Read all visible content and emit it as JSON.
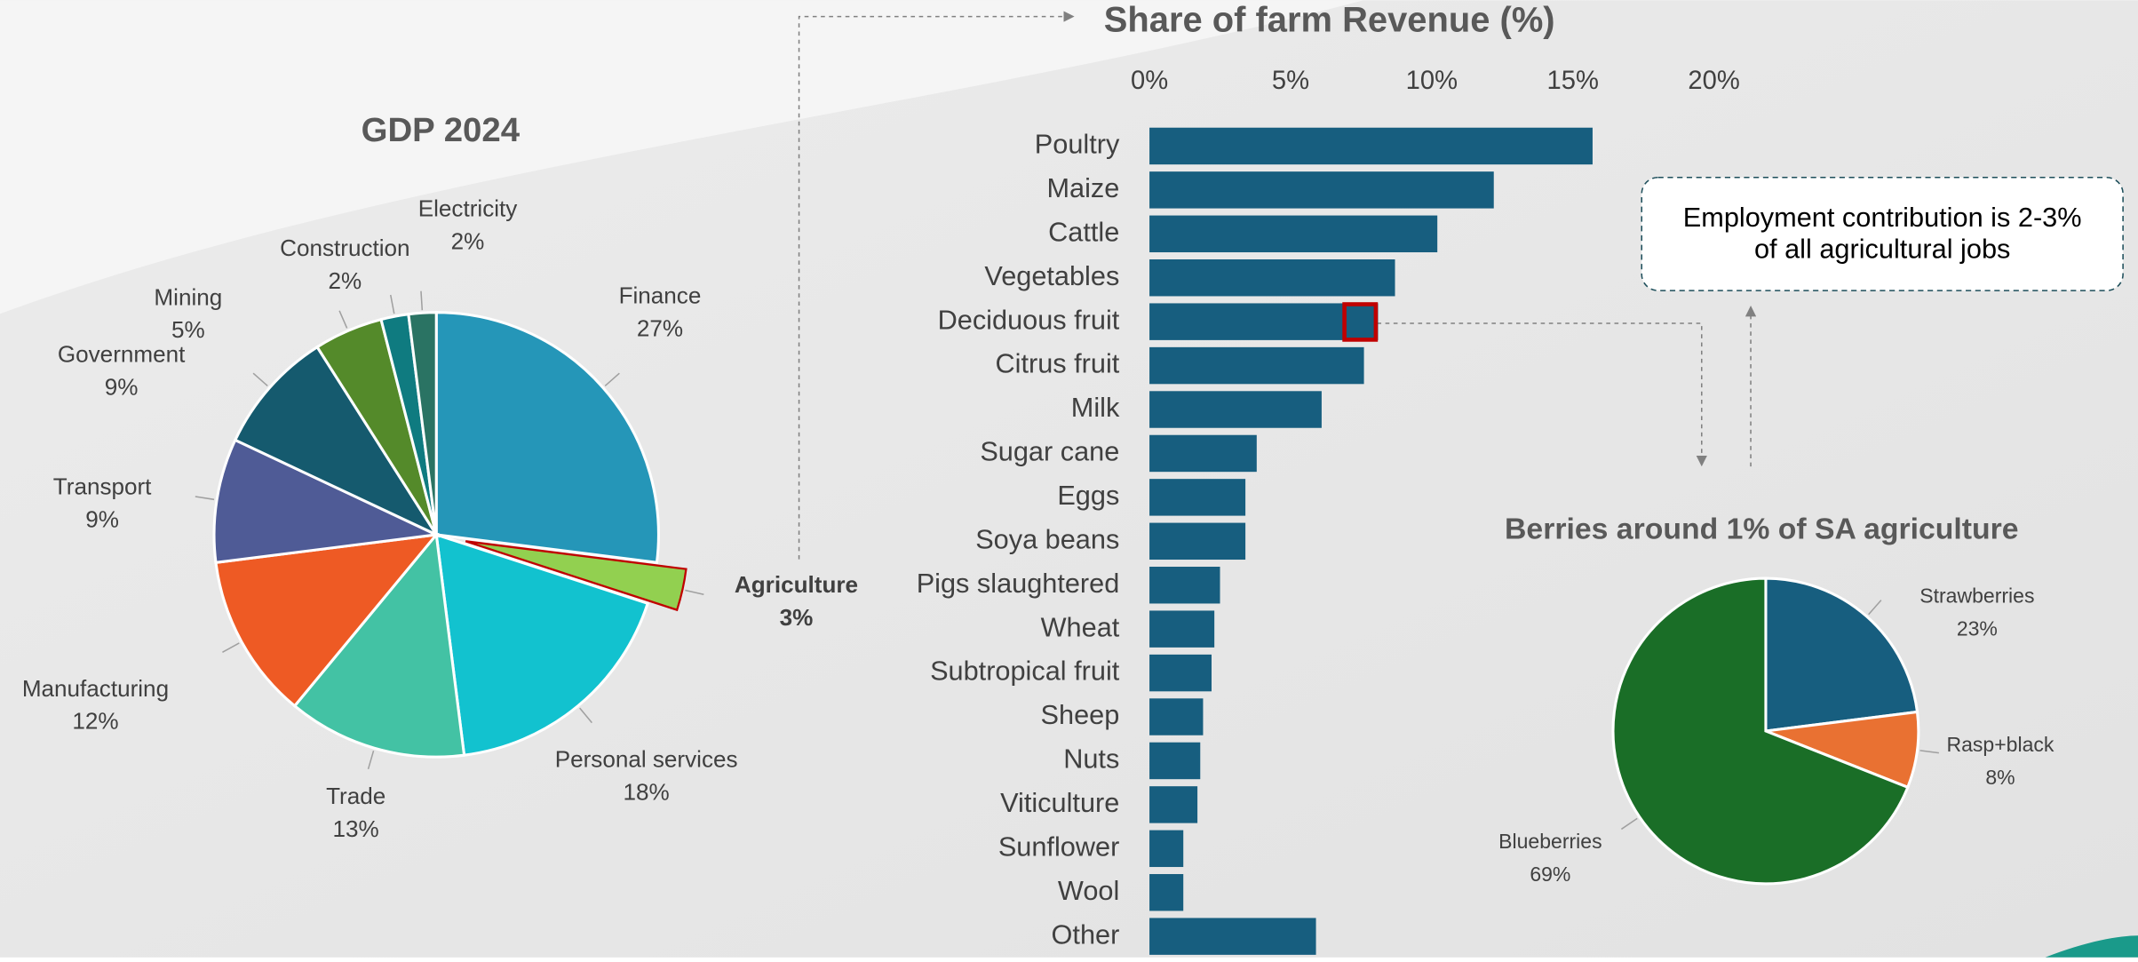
{
  "chart_data": [
    {
      "type": "pie",
      "title": "GDP 2024",
      "categories": [
        "Finance",
        "Agriculture",
        "Personal services",
        "Trade",
        "Manufacturing",
        "Transport",
        "Government",
        "Mining",
        "Construction",
        "Electricity"
      ],
      "values": [
        27,
        3,
        18,
        13,
        12,
        9,
        9,
        5,
        2,
        2
      ],
      "value_labels": [
        "27%",
        "3%",
        "18%",
        "13%",
        "12%",
        "9%",
        "9%",
        "5%",
        "2%",
        "2%"
      ],
      "colors": [
        "#2596b8",
        "#92d050",
        "#12c2cf",
        "#43c2a4",
        "#ee5a24",
        "#4f5b96",
        "#155a6e",
        "#548a2a",
        "#0f7b80",
        "#2a7363"
      ],
      "exploded": "Agriculture"
    },
    {
      "type": "hbar",
      "title": "Share of farm Revenue (%)",
      "categories": [
        "Poultry",
        "Maize",
        "Cattle",
        "Vegetables",
        "Deciduous fruit",
        "Citrus fruit",
        "Milk",
        "Sugar cane",
        "Eggs",
        "Soya beans",
        "Pigs slaughtered",
        "Wheat",
        "Subtropical fruit",
        "Sheep",
        "Nuts",
        "Viticulture",
        "Sunflower",
        "Wool",
        "Other"
      ],
      "values": [
        15.7,
        12.2,
        10.2,
        8.7,
        8.1,
        7.6,
        6.1,
        3.8,
        3.4,
        3.4,
        2.5,
        2.3,
        2.2,
        1.9,
        1.8,
        1.7,
        1.2,
        1.2,
        5.9
      ],
      "color": "#175e7f",
      "xlim": [
        0,
        20
      ],
      "xticks": [
        {
          "value": 0,
          "label": "0%"
        },
        {
          "value": 5,
          "label": "5%"
        },
        {
          "value": 10,
          "label": "10%"
        },
        {
          "value": 15,
          "label": "15%"
        },
        {
          "value": 20,
          "label": "20%"
        }
      ],
      "annotation": "Employment contribution  is 2-3% of all agricultural jobs"
    },
    {
      "type": "pie",
      "title": "Berries around 1% of SA agriculture",
      "categories": [
        "Strawberries",
        "Rasp+black",
        "Blueberries"
      ],
      "values": [
        23,
        8,
        69
      ],
      "value_labels": [
        "23%",
        "8%",
        "69%"
      ],
      "colors": [
        "#175e7f",
        "#e97132",
        "#1a6e27"
      ]
    }
  ]
}
